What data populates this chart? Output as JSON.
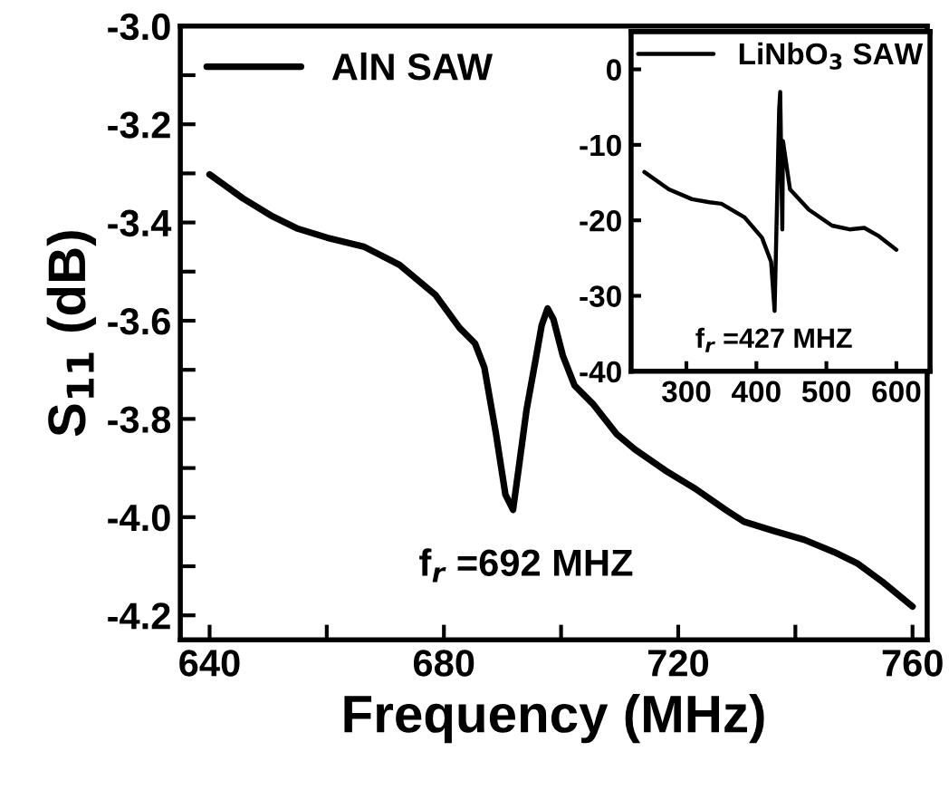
{
  "chart_data": [
    {
      "type": "line",
      "xlabel": "Frequency (MHz)",
      "ylabel": "S$_{11}$ (dB)",
      "legend": "top left",
      "grid": false,
      "xlim": [
        635,
        762.5
      ],
      "ylim": [
        -4.25,
        -3.0
      ],
      "xticks": [
        640,
        {
          "value": 660,
          "label": null
        },
        680,
        {
          "value": 700,
          "label": null
        },
        720,
        {
          "value": 740,
          "label": null
        },
        760
      ],
      "yticks": [
        {
          "value": -4.2,
          "label": "-4.2"
        },
        {
          "value": -4.1,
          "label": null
        },
        {
          "value": -4.0,
          "label": "-4.0"
        },
        {
          "value": -3.9,
          "label": null
        },
        {
          "value": -3.8,
          "label": "-3.8"
        },
        {
          "value": -3.7,
          "label": null
        },
        {
          "value": -3.6,
          "label": "-3.6"
        },
        {
          "value": -3.5,
          "label": null
        },
        {
          "value": -3.4,
          "label": "-3.4"
        },
        {
          "value": -3.3,
          "label": null
        },
        {
          "value": -3.2,
          "label": "-3.2"
        },
        {
          "value": -3.1,
          "label": null
        },
        {
          "value": -3.0,
          "label": "-3.0"
        }
      ],
      "annotations": [
        "f$_{r}$ =692 MHZ"
      ],
      "series": [
        {
          "name": "AlN SAW",
          "color": "#000000",
          "x": [
            640,
            645.7,
            650.8,
            654.9,
            660.1,
            666.3,
            672.4,
            678.6,
            682.7,
            685.3,
            686.9,
            688.9,
            690.5,
            691.8,
            693.0,
            694.1,
            695.6,
            696.7,
            697.7,
            698.7,
            700.3,
            702.3,
            705.4,
            709.5,
            712.6,
            717.8,
            722.9,
            728.1,
            731.2,
            736.3,
            741.5,
            746.6,
            750.7,
            754.9,
            760
          ],
          "values": [
            -3.302,
            -3.351,
            -3.388,
            -3.412,
            -3.431,
            -3.449,
            -3.486,
            -3.548,
            -3.615,
            -3.646,
            -3.695,
            -3.831,
            -3.954,
            -3.985,
            -3.88,
            -3.782,
            -3.683,
            -3.609,
            -3.575,
            -3.597,
            -3.671,
            -3.732,
            -3.769,
            -3.831,
            -3.862,
            -3.905,
            -3.942,
            -3.985,
            -4.009,
            -4.028,
            -4.046,
            -4.071,
            -4.095,
            -4.132,
            -4.182
          ]
        }
      ]
    },
    {
      "type": "line",
      "legend": "top",
      "grid": false,
      "xlim": [
        221,
        648
      ],
      "ylim": [
        -40,
        5
      ],
      "xticks": [
        300,
        400,
        500,
        600
      ],
      "yticks": [
        -40,
        -30,
        -20,
        -10,
        0
      ],
      "annotations": [
        "f$_{r}$ =427 MHZ"
      ],
      "series": [
        {
          "name": "LiNbO$_{3}$ SAW",
          "color": "#000000",
          "x": [
            240,
            275,
            308,
            333,
            350,
            383,
            408,
            421,
            426,
            432.5,
            434,
            437,
            438,
            448,
            475,
            508,
            533,
            554,
            575,
            600
          ],
          "values": [
            -13.6,
            -15.9,
            -17.2,
            -17.6,
            -17.8,
            -19.6,
            -22.3,
            -25.5,
            -32.0,
            -5.3,
            -3.0,
            -21.2,
            -9.5,
            -15.9,
            -18.6,
            -20.7,
            -21.2,
            -21.0,
            -22.1,
            -23.9
          ]
        }
      ]
    }
  ]
}
